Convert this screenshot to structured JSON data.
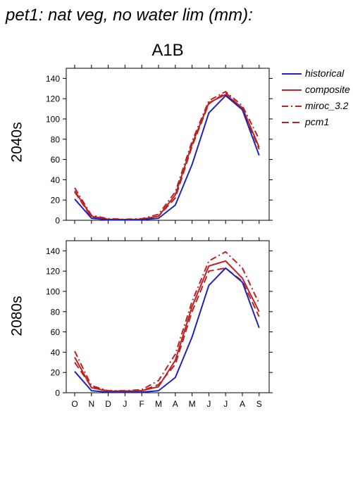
{
  "title": "pet1: nat veg, no water lim (mm):",
  "scenario": "A1B",
  "colors": {
    "historical": "#2222bb",
    "projection": "#bb2222"
  },
  "legend": [
    {
      "label": "historical",
      "style": "solid",
      "color": "#2222bb"
    },
    {
      "label": "composite",
      "style": "solid",
      "color": "#bb2222"
    },
    {
      "label": "miroc_3.2",
      "style": "dashdot",
      "color": "#bb2222"
    },
    {
      "label": "pcm1",
      "style": "dashed",
      "color": "#bb2222"
    }
  ],
  "chart_data": [
    {
      "type": "line",
      "panel_label": "2040s",
      "categories": [
        "O",
        "N",
        "D",
        "J",
        "F",
        "M",
        "A",
        "M",
        "J",
        "J",
        "A",
        "S"
      ],
      "ylim": [
        0,
        150
      ],
      "yticks": [
        0,
        20,
        40,
        60,
        80,
        100,
        120,
        140
      ],
      "series": [
        {
          "name": "historical",
          "values": [
            21,
            2,
            0.5,
            0.5,
            0.5,
            2,
            15,
            55,
            106,
            123,
            109,
            64
          ]
        },
        {
          "name": "composite",
          "values": [
            29,
            4,
            1,
            0.7,
            1,
            4,
            25,
            75,
            116,
            124,
            111,
            72
          ]
        },
        {
          "name": "miroc_3.2",
          "values": [
            32,
            5,
            1.5,
            1,
            1.5,
            6,
            28,
            78,
            118,
            127,
            113,
            80
          ]
        },
        {
          "name": "pcm1",
          "values": [
            28,
            3,
            1,
            0.7,
            1,
            4,
            22,
            73,
            115,
            126,
            110,
            70
          ]
        }
      ]
    },
    {
      "type": "line",
      "panel_label": "2080s",
      "categories": [
        "O",
        "N",
        "D",
        "J",
        "F",
        "M",
        "A",
        "M",
        "J",
        "J",
        "A",
        "S"
      ],
      "ylim": [
        0,
        150
      ],
      "yticks": [
        0,
        20,
        40,
        60,
        80,
        100,
        120,
        140
      ],
      "series": [
        {
          "name": "historical",
          "values": [
            21,
            2,
            0.5,
            0.5,
            0.5,
            2,
            15,
            55,
            106,
            123,
            109,
            64
          ]
        },
        {
          "name": "composite",
          "values": [
            35,
            5,
            1.5,
            1.5,
            2,
            6,
            32,
            85,
            125,
            130,
            113,
            80
          ]
        },
        {
          "name": "miroc_3.2",
          "values": [
            41,
            7,
            2,
            2,
            3,
            12,
            38,
            90,
            130,
            139,
            123,
            88
          ]
        },
        {
          "name": "pcm1",
          "values": [
            30,
            6,
            1.5,
            1.5,
            2,
            8,
            28,
            80,
            120,
            123,
            110,
            75
          ]
        }
      ]
    }
  ]
}
